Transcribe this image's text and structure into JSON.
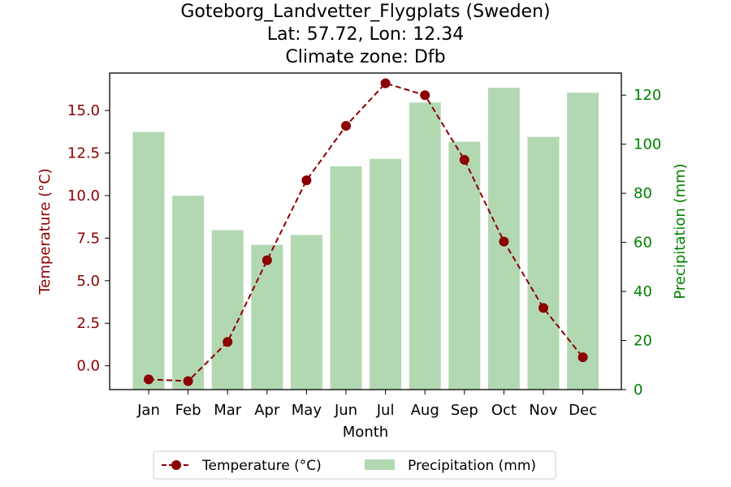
{
  "chart_data": {
    "type": "bar+line",
    "title_lines": [
      "Goteborg_Landvetter_Flygplats (Sweden)",
      "Lat: 57.72, Lon: 12.34",
      "Climate zone: Dfb"
    ],
    "xlabel": "Month",
    "categories": [
      "Jan",
      "Feb",
      "Mar",
      "Apr",
      "May",
      "Jun",
      "Jul",
      "Aug",
      "Sep",
      "Oct",
      "Nov",
      "Dec"
    ],
    "y_left": {
      "label": "Temperature (°C)",
      "ylim": [
        -1.4,
        17.2
      ],
      "ticks": [
        0.0,
        2.5,
        5.0,
        7.5,
        10.0,
        12.5,
        15.0
      ],
      "tick_labels": [
        "0.0",
        "2.5",
        "5.0",
        "7.5",
        "10.0",
        "12.5",
        "15.0"
      ],
      "color": "#8b0000"
    },
    "y_right": {
      "label": "Precipitation (mm)",
      "ylim": [
        0,
        129
      ],
      "ticks": [
        0,
        20,
        40,
        60,
        80,
        100,
        120
      ],
      "tick_labels": [
        "0",
        "20",
        "40",
        "60",
        "80",
        "100",
        "120"
      ],
      "color": "#008000"
    },
    "series": [
      {
        "name": "Temperature (°C)",
        "type": "line",
        "axis": "left",
        "color": "#8b0000",
        "style": "dashed",
        "marker": "circle",
        "values": [
          -0.8,
          -0.9,
          1.4,
          6.2,
          10.9,
          14.1,
          16.6,
          15.9,
          12.1,
          7.3,
          3.4,
          0.5
        ]
      },
      {
        "name": "Precipitation (mm)",
        "type": "bar",
        "axis": "right",
        "color": "#b2d8b2",
        "values": [
          105,
          79,
          65,
          59,
          63,
          91,
          94,
          117,
          101,
          123,
          103,
          121
        ]
      }
    ],
    "legend": {
      "position": "bottom-center",
      "entries": [
        "Temperature (°C)",
        "Precipitation (mm)"
      ]
    },
    "grid": false
  }
}
